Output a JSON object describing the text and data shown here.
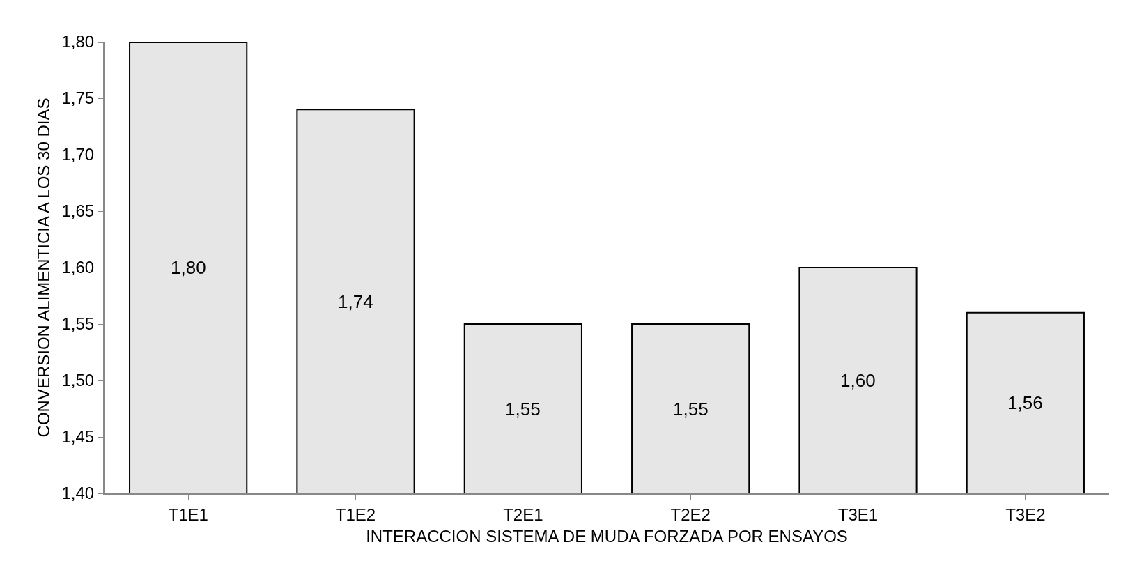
{
  "chart_data": {
    "type": "bar",
    "xlabel": "INTERACCION SISTEMA DE MUDA FORZADA POR ENSAYOS",
    "ylabel": "CONVERSION ALIMENTICIA A LOS 30 DIAS",
    "categories": [
      "T1E1",
      "T1E2",
      "T2E1",
      "T2E2",
      "T3E1",
      "T3E2"
    ],
    "values": [
      1.8,
      1.74,
      1.55,
      1.55,
      1.6,
      1.56
    ],
    "value_labels": [
      "1,80",
      "1,74",
      "1,55",
      "1,55",
      "1,60",
      "1,56"
    ],
    "color": "#e6e6e6",
    "ylim": [
      1.4,
      1.8
    ],
    "yticks": [
      {
        "value": 1.4,
        "label": "1,40"
      },
      {
        "value": 1.45,
        "label": "1,45"
      },
      {
        "value": 1.5,
        "label": "1,50"
      },
      {
        "value": 1.55,
        "label": "1,55"
      },
      {
        "value": 1.6,
        "label": "1,60"
      },
      {
        "value": 1.65,
        "label": "1,65"
      },
      {
        "value": 1.7,
        "label": "1,70"
      },
      {
        "value": 1.75,
        "label": "1,75"
      },
      {
        "value": 1.8,
        "label": "1,80"
      }
    ],
    "grid": false,
    "legend": false
  }
}
